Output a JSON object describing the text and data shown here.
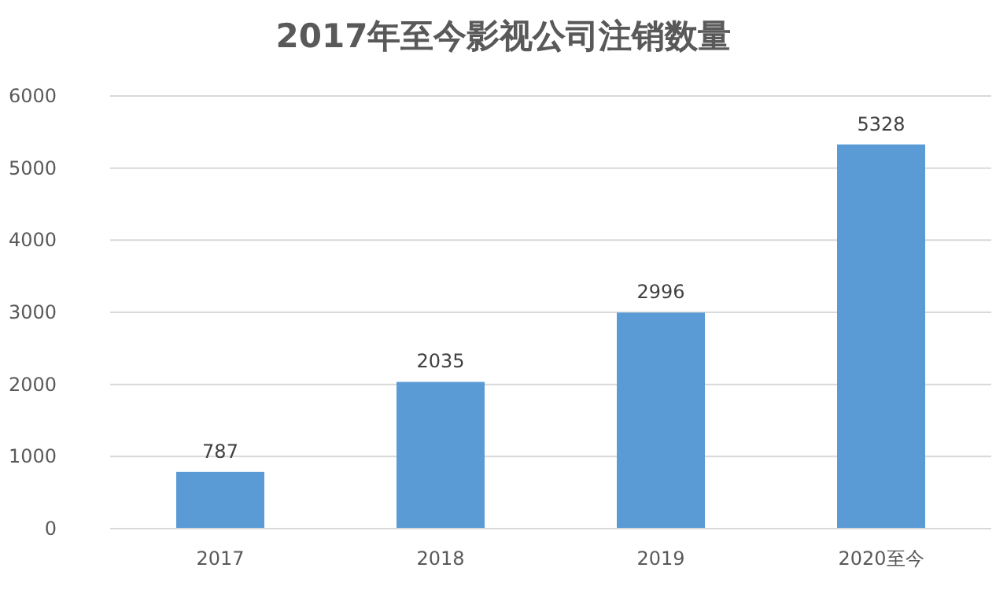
{
  "chart_data": {
    "type": "bar",
    "title": "2017年至今影视公司注销数量",
    "categories": [
      "2017",
      "2018",
      "2019",
      "2020至今"
    ],
    "values": [
      787,
      2035,
      2996,
      5328
    ],
    "color": "#5b9bd5",
    "ylim": [
      0,
      6000
    ],
    "yticks": [
      0,
      1000,
      2000,
      3000,
      4000,
      5000,
      6000
    ],
    "grid": "y",
    "data_labels": true
  }
}
